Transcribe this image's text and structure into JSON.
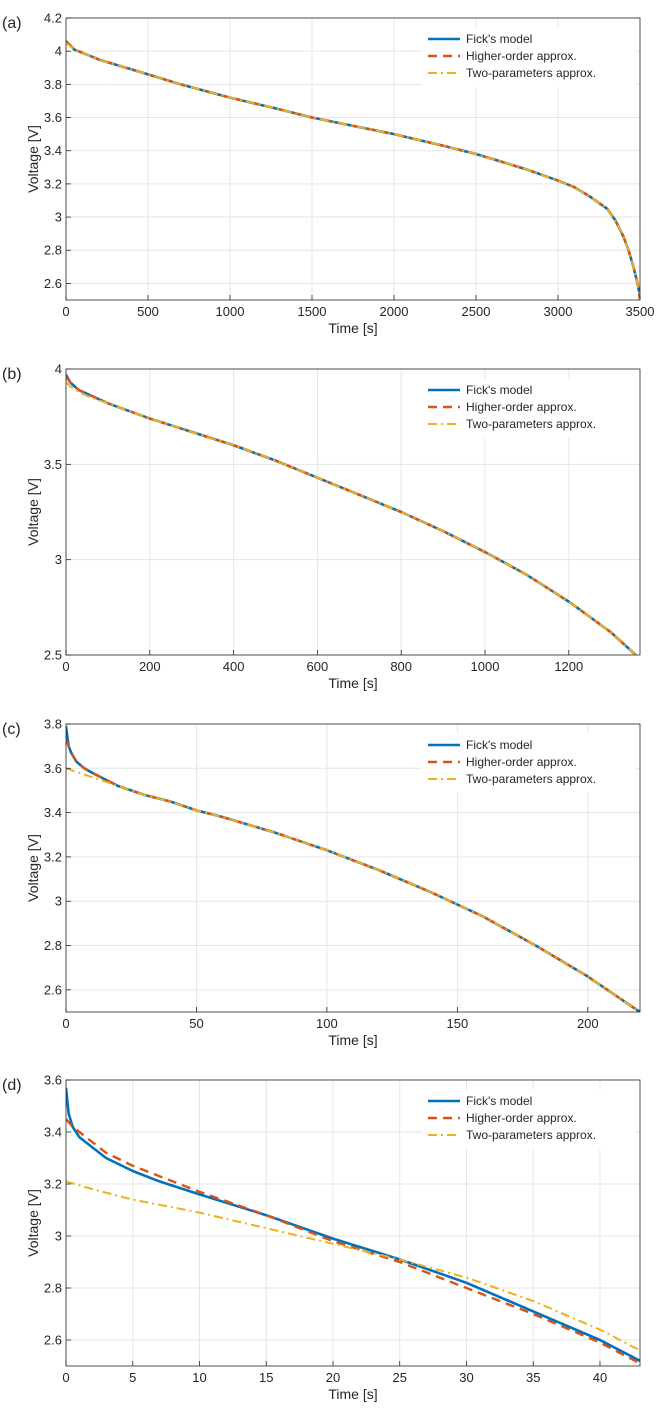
{
  "colors": {
    "fick": "#0072BD",
    "higher": "#D95319",
    "two": "#EDB120"
  },
  "chart_data": [
    {
      "panel_label": "(a)",
      "type": "line",
      "xlabel": "Time [s]",
      "ylabel": "Voltage [V]",
      "xlim": [
        0,
        3500
      ],
      "ylim": [
        2.5,
        4.2
      ],
      "xticks": [
        0,
        500,
        1000,
        1500,
        2000,
        2500,
        3000,
        3500
      ],
      "yticks": [
        2.6,
        2.8,
        3,
        3.2,
        3.4,
        3.6,
        3.8,
        4,
        4.2
      ],
      "grid": true,
      "legend_position": "top-right",
      "series": [
        {
          "name": "Fick's model",
          "style": "solid",
          "x": [
            0,
            50,
            100,
            200,
            300,
            500,
            700,
            1000,
            1300,
            1500,
            1800,
            2000,
            2300,
            2500,
            2800,
            3000,
            3100,
            3200,
            3300,
            3350,
            3400,
            3430,
            3460,
            3480,
            3495,
            3500
          ],
          "y": [
            4.06,
            4.01,
            3.99,
            3.95,
            3.92,
            3.86,
            3.8,
            3.72,
            3.65,
            3.6,
            3.54,
            3.5,
            3.43,
            3.38,
            3.29,
            3.22,
            3.18,
            3.12,
            3.05,
            2.98,
            2.88,
            2.8,
            2.7,
            2.62,
            2.55,
            2.5
          ]
        },
        {
          "name": "Higher-order approx.",
          "style": "dash",
          "x": [
            0,
            50,
            100,
            200,
            300,
            500,
            700,
            1000,
            1300,
            1500,
            1800,
            2000,
            2300,
            2500,
            2800,
            3000,
            3100,
            3200,
            3300,
            3350,
            3400,
            3430,
            3460,
            3480,
            3495,
            3500
          ],
          "y": [
            4.06,
            4.01,
            3.99,
            3.95,
            3.92,
            3.86,
            3.8,
            3.72,
            3.65,
            3.6,
            3.54,
            3.5,
            3.43,
            3.38,
            3.29,
            3.22,
            3.18,
            3.12,
            3.05,
            2.98,
            2.88,
            2.8,
            2.7,
            2.62,
            2.55,
            2.5
          ]
        },
        {
          "name": "Two-parameters approx.",
          "style": "dashdot",
          "x": [
            0,
            50,
            100,
            200,
            300,
            500,
            700,
            1000,
            1300,
            1500,
            1800,
            2000,
            2300,
            2500,
            2800,
            3000,
            3100,
            3200,
            3300,
            3350,
            3400,
            3430,
            3460,
            3480,
            3495,
            3500
          ],
          "y": [
            4.05,
            4.01,
            3.99,
            3.95,
            3.92,
            3.86,
            3.8,
            3.72,
            3.65,
            3.6,
            3.54,
            3.5,
            3.43,
            3.38,
            3.29,
            3.22,
            3.18,
            3.12,
            3.05,
            2.98,
            2.88,
            2.8,
            2.7,
            2.62,
            2.55,
            2.5
          ]
        }
      ]
    },
    {
      "panel_label": "(b)",
      "type": "line",
      "xlabel": "Time [s]",
      "ylabel": "Voltage [V]",
      "xlim": [
        0,
        1370
      ],
      "ylim": [
        2.5,
        4.0
      ],
      "xticks": [
        0,
        200,
        400,
        600,
        800,
        1000,
        1200
      ],
      "yticks": [
        2.5,
        3,
        3.5,
        4
      ],
      "grid": true,
      "legend_position": "top-right",
      "series": [
        {
          "name": "Fick's model",
          "style": "solid",
          "x": [
            0,
            10,
            30,
            60,
            100,
            200,
            300,
            400,
            500,
            600,
            700,
            800,
            900,
            1000,
            1100,
            1200,
            1300,
            1360
          ],
          "y": [
            3.97,
            3.93,
            3.89,
            3.86,
            3.82,
            3.74,
            3.67,
            3.6,
            3.52,
            3.43,
            3.34,
            3.25,
            3.15,
            3.04,
            2.92,
            2.78,
            2.62,
            2.5
          ]
        },
        {
          "name": "Higher-order approx.",
          "style": "dash",
          "x": [
            0,
            10,
            30,
            60,
            100,
            200,
            300,
            400,
            500,
            600,
            700,
            800,
            900,
            1000,
            1100,
            1200,
            1300,
            1360
          ],
          "y": [
            3.96,
            3.93,
            3.89,
            3.86,
            3.82,
            3.74,
            3.67,
            3.6,
            3.52,
            3.43,
            3.34,
            3.25,
            3.15,
            3.04,
            2.92,
            2.78,
            2.62,
            2.5
          ]
        },
        {
          "name": "Two-parameters approx.",
          "style": "dashdot",
          "x": [
            0,
            10,
            30,
            60,
            100,
            200,
            300,
            400,
            500,
            600,
            700,
            800,
            900,
            1000,
            1100,
            1200,
            1300,
            1360
          ],
          "y": [
            3.93,
            3.91,
            3.88,
            3.85,
            3.82,
            3.74,
            3.67,
            3.6,
            3.52,
            3.43,
            3.34,
            3.25,
            3.15,
            3.04,
            2.92,
            2.78,
            2.62,
            2.5
          ]
        }
      ]
    },
    {
      "panel_label": "(c)",
      "type": "line",
      "xlabel": "Time [s]",
      "ylabel": "Voltage [V]",
      "xlim": [
        0,
        220
      ],
      "ylim": [
        2.5,
        3.8
      ],
      "xticks": [
        0,
        50,
        100,
        150,
        200
      ],
      "yticks": [
        2.6,
        2.8,
        3,
        3.2,
        3.4,
        3.6,
        3.8
      ],
      "grid": true,
      "legend_position": "top-right",
      "series": [
        {
          "name": "Fick's model",
          "style": "solid",
          "x": [
            0,
            1,
            2,
            4,
            7,
            10,
            15,
            20,
            30,
            40,
            50,
            60,
            80,
            100,
            120,
            140,
            160,
            180,
            200,
            210,
            220
          ],
          "y": [
            3.79,
            3.7,
            3.67,
            3.63,
            3.6,
            3.58,
            3.55,
            3.52,
            3.48,
            3.45,
            3.41,
            3.38,
            3.31,
            3.23,
            3.14,
            3.04,
            2.93,
            2.8,
            2.66,
            2.58,
            2.5
          ]
        },
        {
          "name": "Higher-order approx.",
          "style": "dash",
          "x": [
            0,
            1,
            2,
            4,
            7,
            10,
            15,
            20,
            30,
            40,
            50,
            60,
            80,
            100,
            120,
            140,
            160,
            180,
            200,
            210,
            220
          ],
          "y": [
            3.73,
            3.7,
            3.67,
            3.63,
            3.6,
            3.58,
            3.55,
            3.52,
            3.48,
            3.45,
            3.41,
            3.38,
            3.31,
            3.23,
            3.14,
            3.04,
            2.93,
            2.8,
            2.66,
            2.58,
            2.5
          ]
        },
        {
          "name": "Two-parameters approx.",
          "style": "dashdot",
          "x": [
            0,
            5,
            10,
            15,
            20,
            30,
            40,
            50,
            60,
            80,
            100,
            120,
            140,
            160,
            180,
            200,
            210,
            220
          ],
          "y": [
            3.6,
            3.58,
            3.56,
            3.54,
            3.52,
            3.48,
            3.45,
            3.41,
            3.38,
            3.31,
            3.23,
            3.14,
            3.04,
            2.93,
            2.8,
            2.66,
            2.58,
            2.5
          ]
        }
      ]
    },
    {
      "panel_label": "(d)",
      "type": "line",
      "xlabel": "Time [s]",
      "ylabel": "Voltage [V]",
      "xlim": [
        0,
        43
      ],
      "ylim": [
        2.5,
        3.6
      ],
      "xticks": [
        0,
        5,
        10,
        15,
        20,
        25,
        30,
        35,
        40
      ],
      "yticks": [
        2.6,
        2.8,
        3,
        3.2,
        3.4,
        3.6
      ],
      "grid": true,
      "legend_position": "top-right",
      "series": [
        {
          "name": "Fick's model",
          "style": "solid",
          "x": [
            0,
            0.2,
            0.5,
            1,
            1.5,
            2,
            3,
            5,
            7,
            10,
            15,
            20,
            25,
            30,
            35,
            40,
            43
          ],
          "y": [
            3.57,
            3.47,
            3.42,
            3.38,
            3.36,
            3.34,
            3.3,
            3.25,
            3.21,
            3.16,
            3.08,
            2.99,
            2.91,
            2.82,
            2.71,
            2.6,
            2.52
          ]
        },
        {
          "name": "Higher-order approx.",
          "style": "dash",
          "x": [
            0,
            0.5,
            1,
            2,
            3,
            5,
            7,
            10,
            15,
            20,
            25,
            30,
            35,
            40,
            43
          ],
          "y": [
            3.45,
            3.42,
            3.4,
            3.36,
            3.32,
            3.27,
            3.23,
            3.17,
            3.08,
            2.98,
            2.9,
            2.8,
            2.7,
            2.59,
            2.51
          ]
        },
        {
          "name": "Two-parameters approx.",
          "style": "dashdot",
          "x": [
            0,
            2,
            5,
            10,
            15,
            20,
            25,
            30,
            35,
            40,
            43
          ],
          "y": [
            3.21,
            3.18,
            3.14,
            3.09,
            3.03,
            2.97,
            2.91,
            2.84,
            2.75,
            2.64,
            2.56
          ]
        }
      ]
    }
  ]
}
